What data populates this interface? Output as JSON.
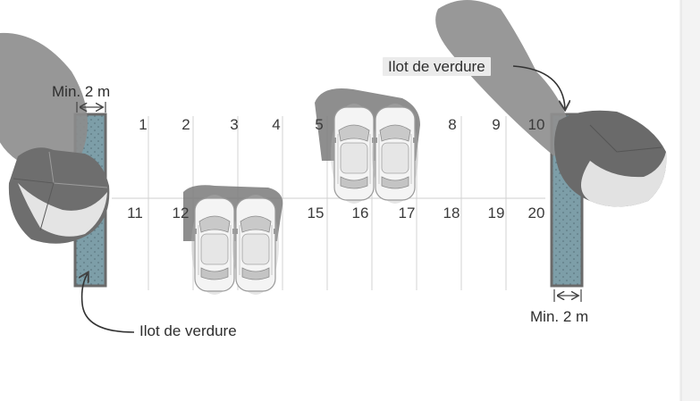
{
  "annotations": {
    "min_width_left": "Min. 2 m",
    "min_width_right": "Min. 2 m",
    "green_island_top": "Ilot de verdure",
    "green_island_bottom": "Ilot de verdure"
  },
  "spaces_top_row": [
    "1",
    "2",
    "3",
    "4",
    "5",
    "8",
    "9",
    "10"
  ],
  "spaces_bottom_row": [
    "11",
    "12",
    "15",
    "16",
    "17",
    "18",
    "19",
    "20"
  ],
  "colors": {
    "green_island_fill": "#7d9ea8",
    "island_border": "#6a6a6a",
    "tree_canopy": "#8a8a8a",
    "car_body": "#f4f4f4",
    "line": "#cfcfcf"
  },
  "icons": [
    "tree-icon",
    "car-icon",
    "dimension-arrow-icon",
    "leader-arrow-icon"
  ]
}
